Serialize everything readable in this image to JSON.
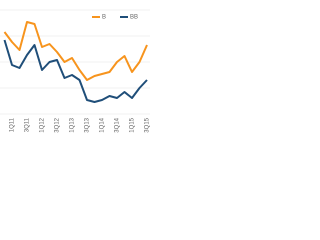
{
  "chart_data": {
    "type": "line",
    "categories": [
      null,
      "1Q11",
      null,
      "3Q11",
      null,
      "1Q12",
      null,
      "3Q12",
      null,
      "1Q13",
      null,
      "3Q13",
      null,
      "1Q14",
      null,
      "3Q14",
      null,
      "1Q15",
      null,
      "3Q15"
    ],
    "series": [
      {
        "name": "B",
        "color": "#f7941d",
        "values": [
          83,
          73,
          65,
          93,
          91,
          68,
          71,
          63,
          53,
          57,
          45,
          35,
          39,
          41,
          43,
          53,
          59,
          43,
          53,
          70
        ]
      },
      {
        "name": "BB",
        "color": "#1f4e79",
        "values": [
          75,
          50,
          47,
          60,
          70,
          45,
          53,
          55,
          37,
          40,
          35,
          15,
          13,
          15,
          19,
          17,
          23,
          17,
          27,
          35
        ]
      }
    ],
    "ylim": [
      0,
      115
    ],
    "legend": "upper right"
  }
}
